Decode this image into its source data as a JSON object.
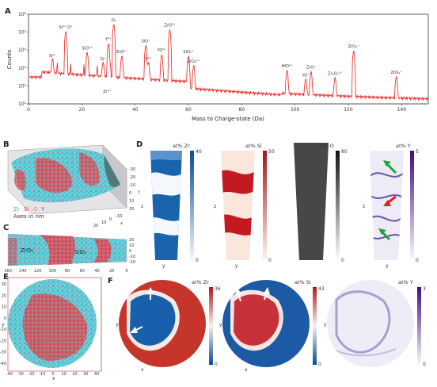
{
  "panels": {
    "a": "A",
    "b": "B",
    "c": "C",
    "d": "D",
    "e": "E",
    "f": "F"
  },
  "chart_data": {
    "type": "line",
    "xlabel": "Mass to Charge-state (Da)",
    "ylabel": "Counts",
    "xlim": [
      0,
      150
    ],
    "ylog": true,
    "ylim_exp": [
      1,
      6
    ],
    "xticks": [
      "0",
      "20",
      "40",
      "60",
      "80",
      "100",
      "120",
      "140"
    ],
    "yticks": [
      "10¹",
      "10²",
      "10³",
      "10⁴",
      "10⁵",
      "10⁶"
    ],
    "color": "#e8231f",
    "peaks": [
      {
        "x": 9,
        "y": 3000,
        "label": "Si²⁺"
      },
      {
        "x": 14,
        "y": 120000,
        "label": "Si²⁺ O⁺"
      },
      {
        "x": 22,
        "y": 8000,
        "label": "SiO²⁺"
      },
      {
        "x": 28,
        "y": 2000,
        "label": "Si⁺"
      },
      {
        "x": 29.5,
        "y": 30,
        "label": "Zr³⁺"
      },
      {
        "x": 30,
        "y": 25000,
        "label": "Y³⁺"
      },
      {
        "x": 32,
        "y": 300000,
        "label": "O₂"
      },
      {
        "x": 35,
        "y": 5000,
        "label": "ZrO²⁺"
      },
      {
        "x": 44,
        "y": 20000,
        "label": "SiO⁺"
      },
      {
        "x": 45,
        "y": 2000,
        "label": "Y²⁺"
      },
      {
        "x": 50,
        "y": 6000,
        "label": "YO²⁺"
      },
      {
        "x": 53,
        "y": 150000,
        "label": "ZrO²⁺"
      },
      {
        "x": 60,
        "y": 5000,
        "label": "SiO₂⁺"
      },
      {
        "x": 62,
        "y": 1500,
        "label": "ZrO₂²⁺"
      },
      {
        "x": 97,
        "y": 800,
        "label": "HfO²⁺"
      },
      {
        "x": 104,
        "y": 250,
        "label": "YO⁺"
      },
      {
        "x": 106,
        "y": 700,
        "label": "ZrO⁺"
      },
      {
        "x": 115,
        "y": 300,
        "label": "Zr₂O₃²⁺"
      },
      {
        "x": 122,
        "y": 10000,
        "label": "ZrO₂⁺"
      },
      {
        "x": 138,
        "y": 350,
        "label": "ZrO₃⁺"
      }
    ]
  },
  "panel_b": {
    "legend": {
      "zr": "Zr",
      "si": "Si",
      "o": "O",
      "y": "Y"
    },
    "axes_note": "Axes in nm",
    "axis_x": "x",
    "axis_y": "y",
    "axis_z": "z"
  },
  "panel_c": {
    "labels": {
      "zro2": "ZrO₂",
      "sio2": "SiO₂"
    },
    "xticks": [
      "160",
      "140",
      "120",
      "100",
      "80",
      "60",
      "40",
      "20",
      "0"
    ],
    "yticks": [
      "-20",
      "-10",
      "0",
      "10",
      "20"
    ]
  },
  "panel_d": {
    "maps": [
      {
        "title": "at% Zr",
        "max": "40",
        "min": "0",
        "cmap": "blues"
      },
      {
        "title": "at% Si",
        "max": "50",
        "min": "0",
        "cmap": "reds"
      },
      {
        "title": "at% O",
        "max": "80",
        "min": "0",
        "cmap": "greys"
      },
      {
        "title": "at% Y",
        "max": "5",
        "min": "0",
        "cmap": "purples"
      }
    ],
    "axis_z": "z",
    "axis_y": "y"
  },
  "panel_e": {
    "xticks": [
      "-40",
      "-30",
      "-20",
      "-10",
      "0",
      "10",
      "20",
      "30",
      "40"
    ],
    "yticks": [
      "30",
      "20",
      "10",
      "0",
      "-10",
      "-20",
      "-30",
      "-40"
    ],
    "axis_x": "x",
    "axis_y": "y"
  },
  "panel_f": {
    "maps": [
      {
        "title": "at% Zr",
        "max": "36",
        "min": "0"
      },
      {
        "title": "at% Si",
        "max": "43",
        "min": "0"
      },
      {
        "title": "at% Y",
        "max": "3",
        "min": "0"
      }
    ],
    "axis_x": "x",
    "axis_y": "y"
  }
}
